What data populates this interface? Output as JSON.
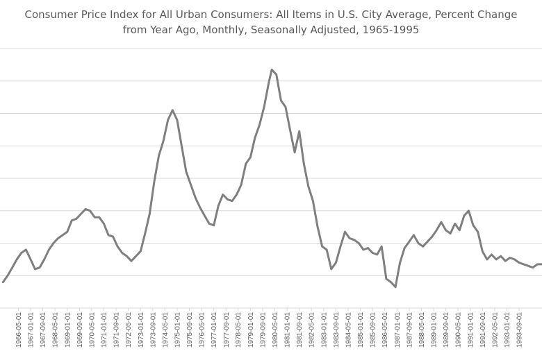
{
  "chart_data": {
    "type": "line",
    "title": "Consumer Price Index for All Urban Consumers: All Items in U.S. City Average, Percent Change from Year Ago, Monthly, Seasonally Adjusted, 1965-1995",
    "title_lines": [
      "Consumer Price Index for All Urban Consumers: All Items in U.S. City Average, Percent Change",
      "from Year Ago, Monthly, Seasonally Adjusted, 1965-1995"
    ],
    "xlabel": "",
    "ylabel": "",
    "ylim": [
      0,
      16
    ],
    "grid": true,
    "line_color": "#7f7f7f",
    "x_tick_labels": [
      "1966-05-01",
      "1967-01-01",
      "1967-09-01",
      "1968-05-01",
      "1969-01-01",
      "1969-09-01",
      "1970-05-01",
      "1971-01-01",
      "1971-09-01",
      "1972-05-01",
      "1973-01-01",
      "1973-09-01",
      "1974-05-01",
      "1975-01-01",
      "1975-09-01",
      "1976-05-01",
      "1977-01-01",
      "1977-09-01",
      "1978-05-01",
      "1979-01-01",
      "1979-09-01",
      "1980-05-01",
      "1981-01-01",
      "1981-09-01",
      "1982-05-01",
      "1983-01-01",
      "1983-09-01",
      "1984-05-01",
      "1985-01-01",
      "1985-09-01",
      "1986-05-01",
      "1987-01-01",
      "1987-09-01",
      "1988-05-01",
      "1989-01-01",
      "1989-09-01",
      "1990-05-01",
      "1991-01-01",
      "1991-09-01",
      "1992-05-01",
      "1993-01-01",
      "1993-09-01"
    ],
    "series": [
      {
        "x": [
          "1965-07-01",
          "1965-10-01",
          "1966-01-01",
          "1966-04-01",
          "1966-07-01",
          "1966-10-01",
          "1967-01-01",
          "1967-04-01",
          "1967-07-01",
          "1967-10-01",
          "1968-01-01",
          "1968-04-01",
          "1968-07-01",
          "1968-10-01",
          "1969-01-01",
          "1969-04-01",
          "1969-07-01",
          "1969-10-01",
          "1970-01-01",
          "1970-04-01",
          "1970-07-01",
          "1970-10-01",
          "1971-01-01",
          "1971-04-01",
          "1971-07-01",
          "1971-10-01",
          "1972-01-01",
          "1972-04-01",
          "1972-07-01",
          "1972-10-01",
          "1973-01-01",
          "1973-04-01",
          "1973-07-01",
          "1973-10-01",
          "1974-01-01",
          "1974-04-01",
          "1974-07-01",
          "1974-10-01",
          "1975-01-01",
          "1975-04-01",
          "1975-07-01",
          "1975-10-01",
          "1976-01-01",
          "1976-04-01",
          "1976-07-01",
          "1976-10-01",
          "1977-01-01",
          "1977-04-01",
          "1977-07-01",
          "1977-10-01",
          "1978-01-01",
          "1978-04-01",
          "1978-07-01",
          "1978-10-01",
          "1979-01-01",
          "1979-04-01",
          "1979-07-01",
          "1979-10-01",
          "1980-01-01",
          "1980-03-01",
          "1980-06-01",
          "1980-09-01",
          "1980-12-01",
          "1981-03-01",
          "1981-06-01",
          "1981-09-01",
          "1981-12-01",
          "1982-03-01",
          "1982-06-01",
          "1982-09-01",
          "1982-12-01",
          "1983-03-01",
          "1983-06-01",
          "1983-09-01",
          "1983-12-01",
          "1984-03-01",
          "1984-06-01",
          "1984-09-01",
          "1984-12-01",
          "1985-03-01",
          "1985-06-01",
          "1985-09-01",
          "1985-12-01",
          "1986-03-01",
          "1986-06-01",
          "1986-09-01",
          "1986-12-01",
          "1987-03-01",
          "1987-06-01",
          "1987-09-01",
          "1987-12-01",
          "1988-03-01",
          "1988-06-01",
          "1988-09-01",
          "1988-12-01",
          "1989-03-01",
          "1989-06-01",
          "1989-09-01",
          "1989-12-01",
          "1990-03-01",
          "1990-06-01",
          "1990-09-01",
          "1990-12-01",
          "1991-03-01",
          "1991-06-01",
          "1991-09-01",
          "1991-12-01",
          "1992-03-01",
          "1992-06-01",
          "1992-09-01",
          "1992-12-01",
          "1993-03-01",
          "1993-06-01",
          "1993-09-01",
          "1993-12-01",
          "1994-03-01",
          "1994-06-01",
          "1994-09-01",
          "1994-12-01"
        ],
        "values": [
          1.6,
          2.0,
          2.5,
          3.0,
          3.4,
          3.6,
          3.0,
          2.4,
          2.5,
          3.0,
          3.6,
          4.0,
          4.3,
          4.5,
          4.7,
          5.4,
          5.5,
          5.8,
          6.1,
          6.0,
          5.6,
          5.6,
          5.2,
          4.5,
          4.4,
          3.8,
          3.4,
          3.2,
          2.9,
          3.2,
          3.5,
          4.6,
          5.8,
          7.8,
          9.4,
          10.3,
          11.6,
          12.2,
          11.6,
          10.0,
          8.4,
          7.6,
          6.8,
          6.2,
          5.7,
          5.2,
          5.1,
          6.3,
          7.0,
          6.7,
          6.6,
          7.0,
          7.6,
          8.9,
          9.3,
          10.5,
          11.3,
          12.4,
          13.9,
          14.7,
          14.4,
          12.8,
          12.4,
          11.0,
          9.6,
          10.9,
          8.9,
          7.5,
          6.6,
          5.0,
          3.8,
          3.6,
          2.4,
          2.8,
          3.8,
          4.7,
          4.3,
          4.2,
          4.0,
          3.6,
          3.7,
          3.4,
          3.3,
          3.8,
          1.8,
          1.6,
          1.3,
          2.8,
          3.7,
          4.1,
          4.5,
          4.0,
          3.8,
          4.1,
          4.4,
          4.8,
          5.3,
          4.8,
          4.6,
          5.2,
          4.8,
          5.7,
          6.0,
          5.1,
          4.7,
          3.5,
          3.0,
          3.3,
          3.0,
          3.2,
          2.9,
          3.1,
          3.0,
          2.8,
          2.7,
          2.6,
          2.5,
          2.7,
          2.7
        ]
      }
    ]
  }
}
